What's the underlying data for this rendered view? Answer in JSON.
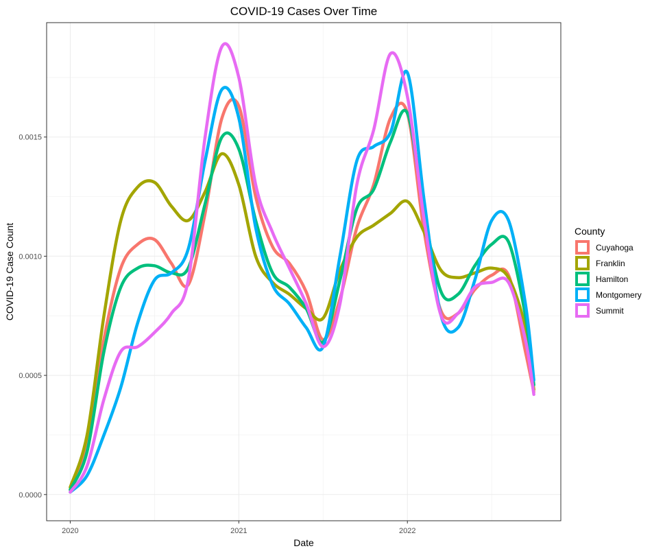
{
  "chart_data": {
    "type": "line",
    "title": "COVID-19 Cases Over Time",
    "xlabel": "Date",
    "ylabel": "COVID-19 Case Count",
    "xlim": [
      2019.86,
      2022.91
    ],
    "ylim": [
      -0.00011,
      0.00198
    ],
    "x_ticks": [
      2020,
      2021,
      2022
    ],
    "x_tick_labels": [
      "2020",
      "2021",
      "2022"
    ],
    "y_ticks": [
      0.0,
      0.0005,
      0.001,
      0.0015
    ],
    "y_tick_labels": [
      "0.0000",
      "0.0005",
      "0.0010",
      "0.0015"
    ],
    "grid": true,
    "legend": {
      "title": "County",
      "position": "right"
    },
    "series": [
      {
        "name": "Cuyahoga",
        "color": "#F8766D",
        "x": [
          2020.0,
          2020.1,
          2020.2,
          2020.3,
          2020.4,
          2020.5,
          2020.6,
          2020.7,
          2020.8,
          2020.9,
          2021.0,
          2021.1,
          2021.2,
          2021.3,
          2021.4,
          2021.5,
          2021.6,
          2021.7,
          2021.8,
          2021.9,
          2022.0,
          2022.1,
          2022.2,
          2022.3,
          2022.4,
          2022.5,
          2022.6,
          2022.7,
          2022.75
        ],
        "y": [
          2e-05,
          0.0002,
          0.00065,
          0.00095,
          0.00105,
          0.00107,
          0.00097,
          0.00088,
          0.00118,
          0.00158,
          0.00163,
          0.00125,
          0.00104,
          0.00097,
          0.00085,
          0.00065,
          0.00082,
          0.00112,
          0.0013,
          0.00158,
          0.0016,
          0.0011,
          0.00077,
          0.00076,
          0.00086,
          0.00092,
          0.00092,
          0.0006,
          0.00043
        ]
      },
      {
        "name": "Franklin",
        "color": "#A3A500",
        "x": [
          2020.0,
          2020.1,
          2020.2,
          2020.3,
          2020.4,
          2020.5,
          2020.6,
          2020.7,
          2020.8,
          2020.9,
          2021.0,
          2021.1,
          2021.2,
          2021.3,
          2021.4,
          2021.5,
          2021.6,
          2021.7,
          2021.8,
          2021.9,
          2022.0,
          2022.1,
          2022.2,
          2022.3,
          2022.4,
          2022.5,
          2022.6,
          2022.7,
          2022.75
        ],
        "y": [
          3e-05,
          0.00025,
          0.00075,
          0.00115,
          0.00129,
          0.00131,
          0.00121,
          0.00115,
          0.00127,
          0.00143,
          0.0013,
          0.001,
          0.00089,
          0.00084,
          0.00078,
          0.00074,
          0.00094,
          0.00108,
          0.00113,
          0.00118,
          0.00123,
          0.0011,
          0.00094,
          0.00091,
          0.00093,
          0.00095,
          0.00091,
          0.0007,
          0.00044
        ]
      },
      {
        "name": "Hamilton",
        "color": "#00BF7D",
        "x": [
          2020.0,
          2020.1,
          2020.2,
          2020.3,
          2020.4,
          2020.5,
          2020.6,
          2020.7,
          2020.8,
          2020.9,
          2021.0,
          2021.1,
          2021.2,
          2021.3,
          2021.4,
          2021.5,
          2021.6,
          2021.7,
          2021.8,
          2021.9,
          2022.0,
          2022.1,
          2022.2,
          2022.3,
          2022.4,
          2022.5,
          2022.6,
          2022.7,
          2022.75
        ],
        "y": [
          2e-05,
          0.00018,
          0.0006,
          0.00087,
          0.00095,
          0.00096,
          0.00093,
          0.00095,
          0.00122,
          0.0015,
          0.00145,
          0.00115,
          0.00093,
          0.00087,
          0.00078,
          0.00064,
          0.0009,
          0.0012,
          0.00128,
          0.00148,
          0.0016,
          0.00118,
          0.00085,
          0.00084,
          0.00096,
          0.00105,
          0.00106,
          0.00075,
          0.00046
        ]
      },
      {
        "name": "Montgomery",
        "color": "#00B0F6",
        "x": [
          2020.0,
          2020.1,
          2020.2,
          2020.3,
          2020.4,
          2020.5,
          2020.6,
          2020.7,
          2020.8,
          2020.9,
          2021.0,
          2021.1,
          2021.2,
          2021.3,
          2021.4,
          2021.5,
          2021.6,
          2021.7,
          2021.8,
          2021.9,
          2022.0,
          2022.1,
          2022.2,
          2022.3,
          2022.4,
          2022.5,
          2022.6,
          2022.7,
          2022.75
        ],
        "y": [
          1e-05,
          8e-05,
          0.00025,
          0.00045,
          0.00072,
          0.0009,
          0.00093,
          0.00103,
          0.0014,
          0.0017,
          0.00158,
          0.00112,
          0.00088,
          0.0008,
          0.0007,
          0.00062,
          0.001,
          0.0014,
          0.00146,
          0.00152,
          0.00177,
          0.00123,
          0.00075,
          0.0007,
          0.0009,
          0.00115,
          0.00115,
          0.0008,
          0.00048
        ]
      },
      {
        "name": "Summit",
        "color": "#E76BF3",
        "x": [
          2020.0,
          2020.1,
          2020.2,
          2020.3,
          2020.4,
          2020.5,
          2020.6,
          2020.7,
          2020.8,
          2020.9,
          2021.0,
          2021.1,
          2021.2,
          2021.3,
          2021.4,
          2021.5,
          2021.6,
          2021.7,
          2021.8,
          2021.9,
          2022.0,
          2022.1,
          2022.2,
          2022.3,
          2022.4,
          2022.5,
          2022.6,
          2022.7,
          2022.75
        ],
        "y": [
          1e-05,
          0.00012,
          0.0004,
          0.0006,
          0.00062,
          0.00068,
          0.00076,
          0.0009,
          0.0015,
          0.00188,
          0.00175,
          0.0013,
          0.0011,
          0.00095,
          0.0008,
          0.00062,
          0.0008,
          0.0013,
          0.00153,
          0.00185,
          0.00167,
          0.00115,
          0.00075,
          0.00076,
          0.00087,
          0.00089,
          0.00089,
          0.00065,
          0.00042
        ]
      }
    ]
  }
}
